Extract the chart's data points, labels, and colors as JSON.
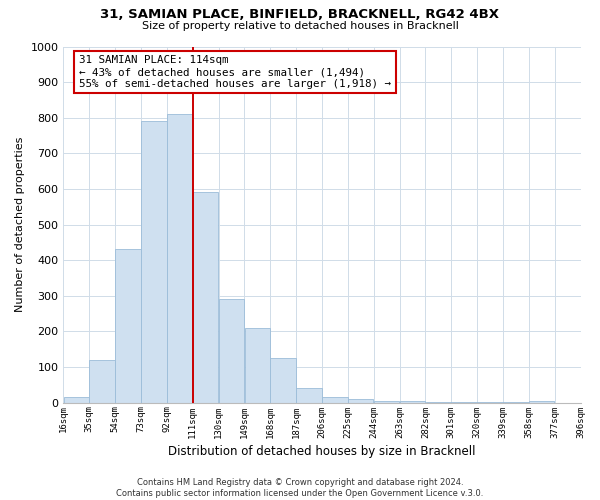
{
  "title": "31, SAMIAN PLACE, BINFIELD, BRACKNELL, RG42 4BX",
  "subtitle": "Size of property relative to detached houses in Bracknell",
  "xlabel": "Distribution of detached houses by size in Bracknell",
  "ylabel": "Number of detached properties",
  "bar_edges": [
    16,
    35,
    54,
    73,
    92,
    111,
    130,
    149,
    168,
    187,
    206,
    225,
    244,
    263,
    282,
    301,
    320,
    339,
    358,
    377,
    396
  ],
  "bar_heights": [
    15,
    120,
    430,
    790,
    810,
    590,
    290,
    210,
    125,
    40,
    15,
    10,
    5,
    3,
    2,
    2,
    1,
    1,
    5,
    0
  ],
  "bar_color": "#cfe0f0",
  "bar_edgecolor": "#9bbcd8",
  "reference_line_x": 111,
  "reference_line_color": "#cc0000",
  "annotation_title": "31 SAMIAN PLACE: 114sqm",
  "annotation_line1": "← 43% of detached houses are smaller (1,494)",
  "annotation_line2": "55% of semi-detached houses are larger (1,918) →",
  "annotation_box_color": "white",
  "annotation_box_edgecolor": "#cc0000",
  "ylim": [
    0,
    1000
  ],
  "yticks": [
    0,
    100,
    200,
    300,
    400,
    500,
    600,
    700,
    800,
    900,
    1000
  ],
  "tick_labels": [
    "16sqm",
    "35sqm",
    "54sqm",
    "73sqm",
    "92sqm",
    "111sqm",
    "130sqm",
    "149sqm",
    "168sqm",
    "187sqm",
    "206sqm",
    "225sqm",
    "244sqm",
    "263sqm",
    "282sqm",
    "301sqm",
    "320sqm",
    "339sqm",
    "358sqm",
    "377sqm",
    "396sqm"
  ],
  "footer_line1": "Contains HM Land Registry data © Crown copyright and database right 2024.",
  "footer_line2": "Contains public sector information licensed under the Open Government Licence v.3.0.",
  "background_color": "#ffffff",
  "grid_color": "#d0dce8"
}
